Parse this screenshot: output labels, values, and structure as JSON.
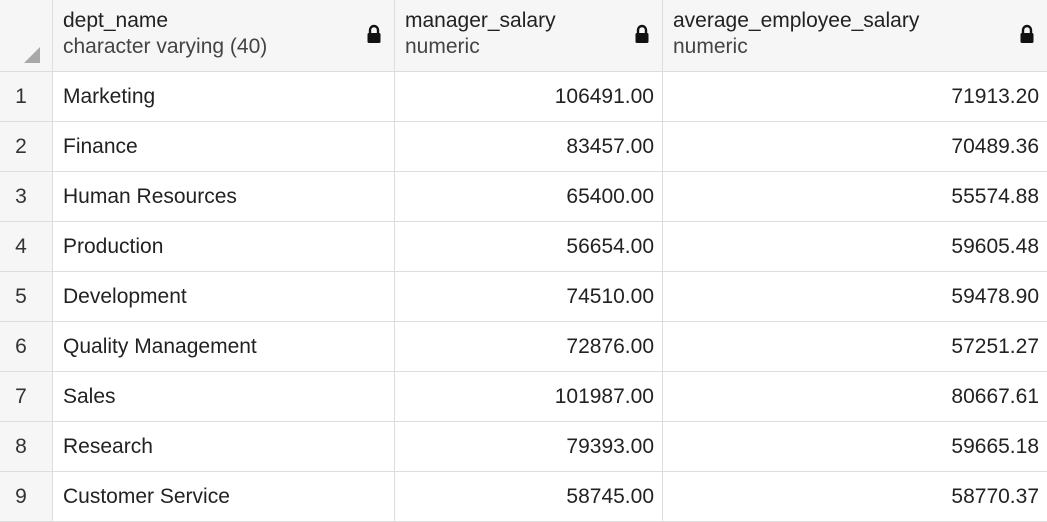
{
  "columns": [
    {
      "name": "dept_name",
      "type": "character varying (40)"
    },
    {
      "name": "manager_salary",
      "type": "numeric"
    },
    {
      "name": "average_employee_salary",
      "type": "numeric"
    }
  ],
  "rows": [
    {
      "num": "1",
      "dept_name": "Marketing",
      "manager_salary": "106491.00",
      "average_employee_salary": "71913.20"
    },
    {
      "num": "2",
      "dept_name": "Finance",
      "manager_salary": "83457.00",
      "average_employee_salary": "70489.36"
    },
    {
      "num": "3",
      "dept_name": "Human Resources",
      "manager_salary": "65400.00",
      "average_employee_salary": "55574.88"
    },
    {
      "num": "4",
      "dept_name": "Production",
      "manager_salary": "56654.00",
      "average_employee_salary": "59605.48"
    },
    {
      "num": "5",
      "dept_name": "Development",
      "manager_salary": "74510.00",
      "average_employee_salary": "59478.90"
    },
    {
      "num": "6",
      "dept_name": "Quality Management",
      "manager_salary": "72876.00",
      "average_employee_salary": "57251.27"
    },
    {
      "num": "7",
      "dept_name": "Sales",
      "manager_salary": "101987.00",
      "average_employee_salary": "80667.61"
    },
    {
      "num": "8",
      "dept_name": "Research",
      "manager_salary": "79393.00",
      "average_employee_salary": "59665.18"
    },
    {
      "num": "9",
      "dept_name": "Customer Service",
      "manager_salary": "58745.00",
      "average_employee_salary": "58770.37"
    }
  ],
  "icons": {
    "column_lock": "lock-icon",
    "select_all": "select-all-corner-icon"
  }
}
